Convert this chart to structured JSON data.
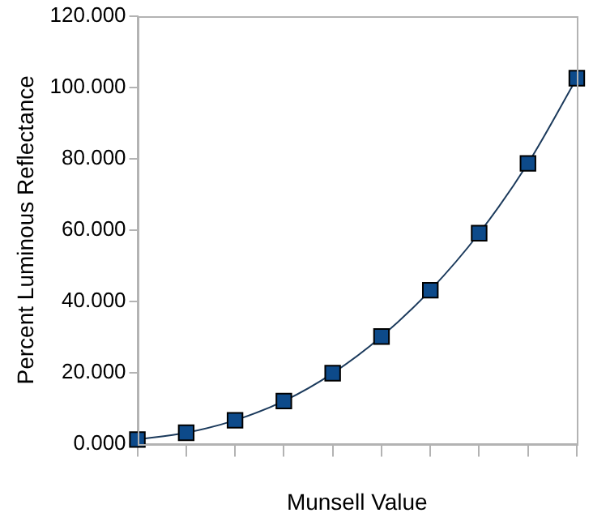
{
  "chart_data": {
    "type": "line",
    "xlabel": "Munsell Value",
    "ylabel": "Percent Luminous Reflectance",
    "categories": [
      null,
      null,
      null,
      null,
      null,
      null,
      null,
      null,
      null,
      null
    ],
    "series": [
      {
        "color": "#0d4a8a",
        "values": [
          1.2,
          3.1,
          6.6,
          12.0,
          19.8,
          30.1,
          43.1,
          59.1,
          78.7,
          102.6
        ]
      }
    ],
    "ylim": [
      0,
      120
    ],
    "yticks": [
      {
        "value": 0,
        "label": "0.000"
      },
      {
        "value": 20,
        "label": "20.000"
      },
      {
        "value": 40,
        "label": "40.000"
      },
      {
        "value": 60,
        "label": "60.000"
      },
      {
        "value": 80,
        "label": "80.000"
      },
      {
        "value": 100,
        "label": "100.000"
      },
      {
        "value": 120,
        "label": "120.000"
      }
    ],
    "grid": false,
    "legend": false,
    "marker": "square",
    "line_style": "solid"
  }
}
